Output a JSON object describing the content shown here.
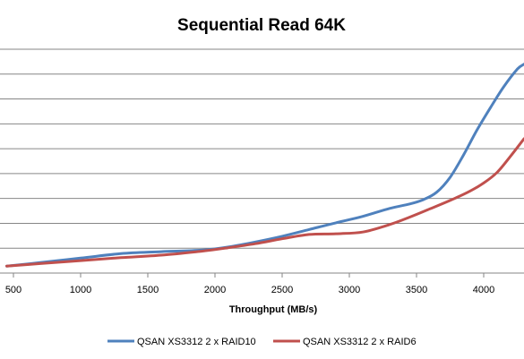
{
  "chart_data": {
    "type": "line",
    "title": "Sequential Read 64K",
    "xlabel": "Throughput (MB/s)",
    "ylabel": "",
    "xlim": [
      400,
      4300
    ],
    "ylim": [
      0,
      9
    ],
    "xticks": [
      "500",
      "1000",
      "1500",
      "2000",
      "2500",
      "3000",
      "3500",
      "4000"
    ],
    "grid": true,
    "legend_position": "bottom",
    "series": [
      {
        "name": "QSAN XS3312 2 x RAID10",
        "color": "#4F81BD",
        "x": [
          450,
          700,
          1000,
          1300,
          1600,
          1900,
          2100,
          2300,
          2500,
          2700,
          2900,
          3100,
          3300,
          3450,
          3550,
          3650,
          3750,
          3850,
          3950,
          4050,
          4150,
          4250,
          4300
        ],
        "y": [
          0.28,
          0.42,
          0.6,
          0.78,
          0.86,
          0.92,
          1.05,
          1.25,
          1.48,
          1.75,
          2.02,
          2.28,
          2.6,
          2.78,
          2.95,
          3.25,
          3.85,
          4.75,
          5.75,
          6.65,
          7.5,
          8.2,
          8.4
        ]
      },
      {
        "name": "QSAN XS3312 2 x RAID6",
        "color": "#C0504D",
        "x": [
          450,
          700,
          1000,
          1300,
          1600,
          1900,
          2100,
          2300,
          2500,
          2700,
          2900,
          3100,
          3300,
          3450,
          3600,
          3750,
          3900,
          4000,
          4100,
          4200,
          4300
        ],
        "y": [
          0.28,
          0.38,
          0.5,
          0.62,
          0.72,
          0.88,
          1.02,
          1.18,
          1.38,
          1.55,
          1.58,
          1.65,
          1.95,
          2.25,
          2.58,
          2.92,
          3.3,
          3.62,
          4.05,
          4.7,
          5.4
        ]
      }
    ]
  }
}
